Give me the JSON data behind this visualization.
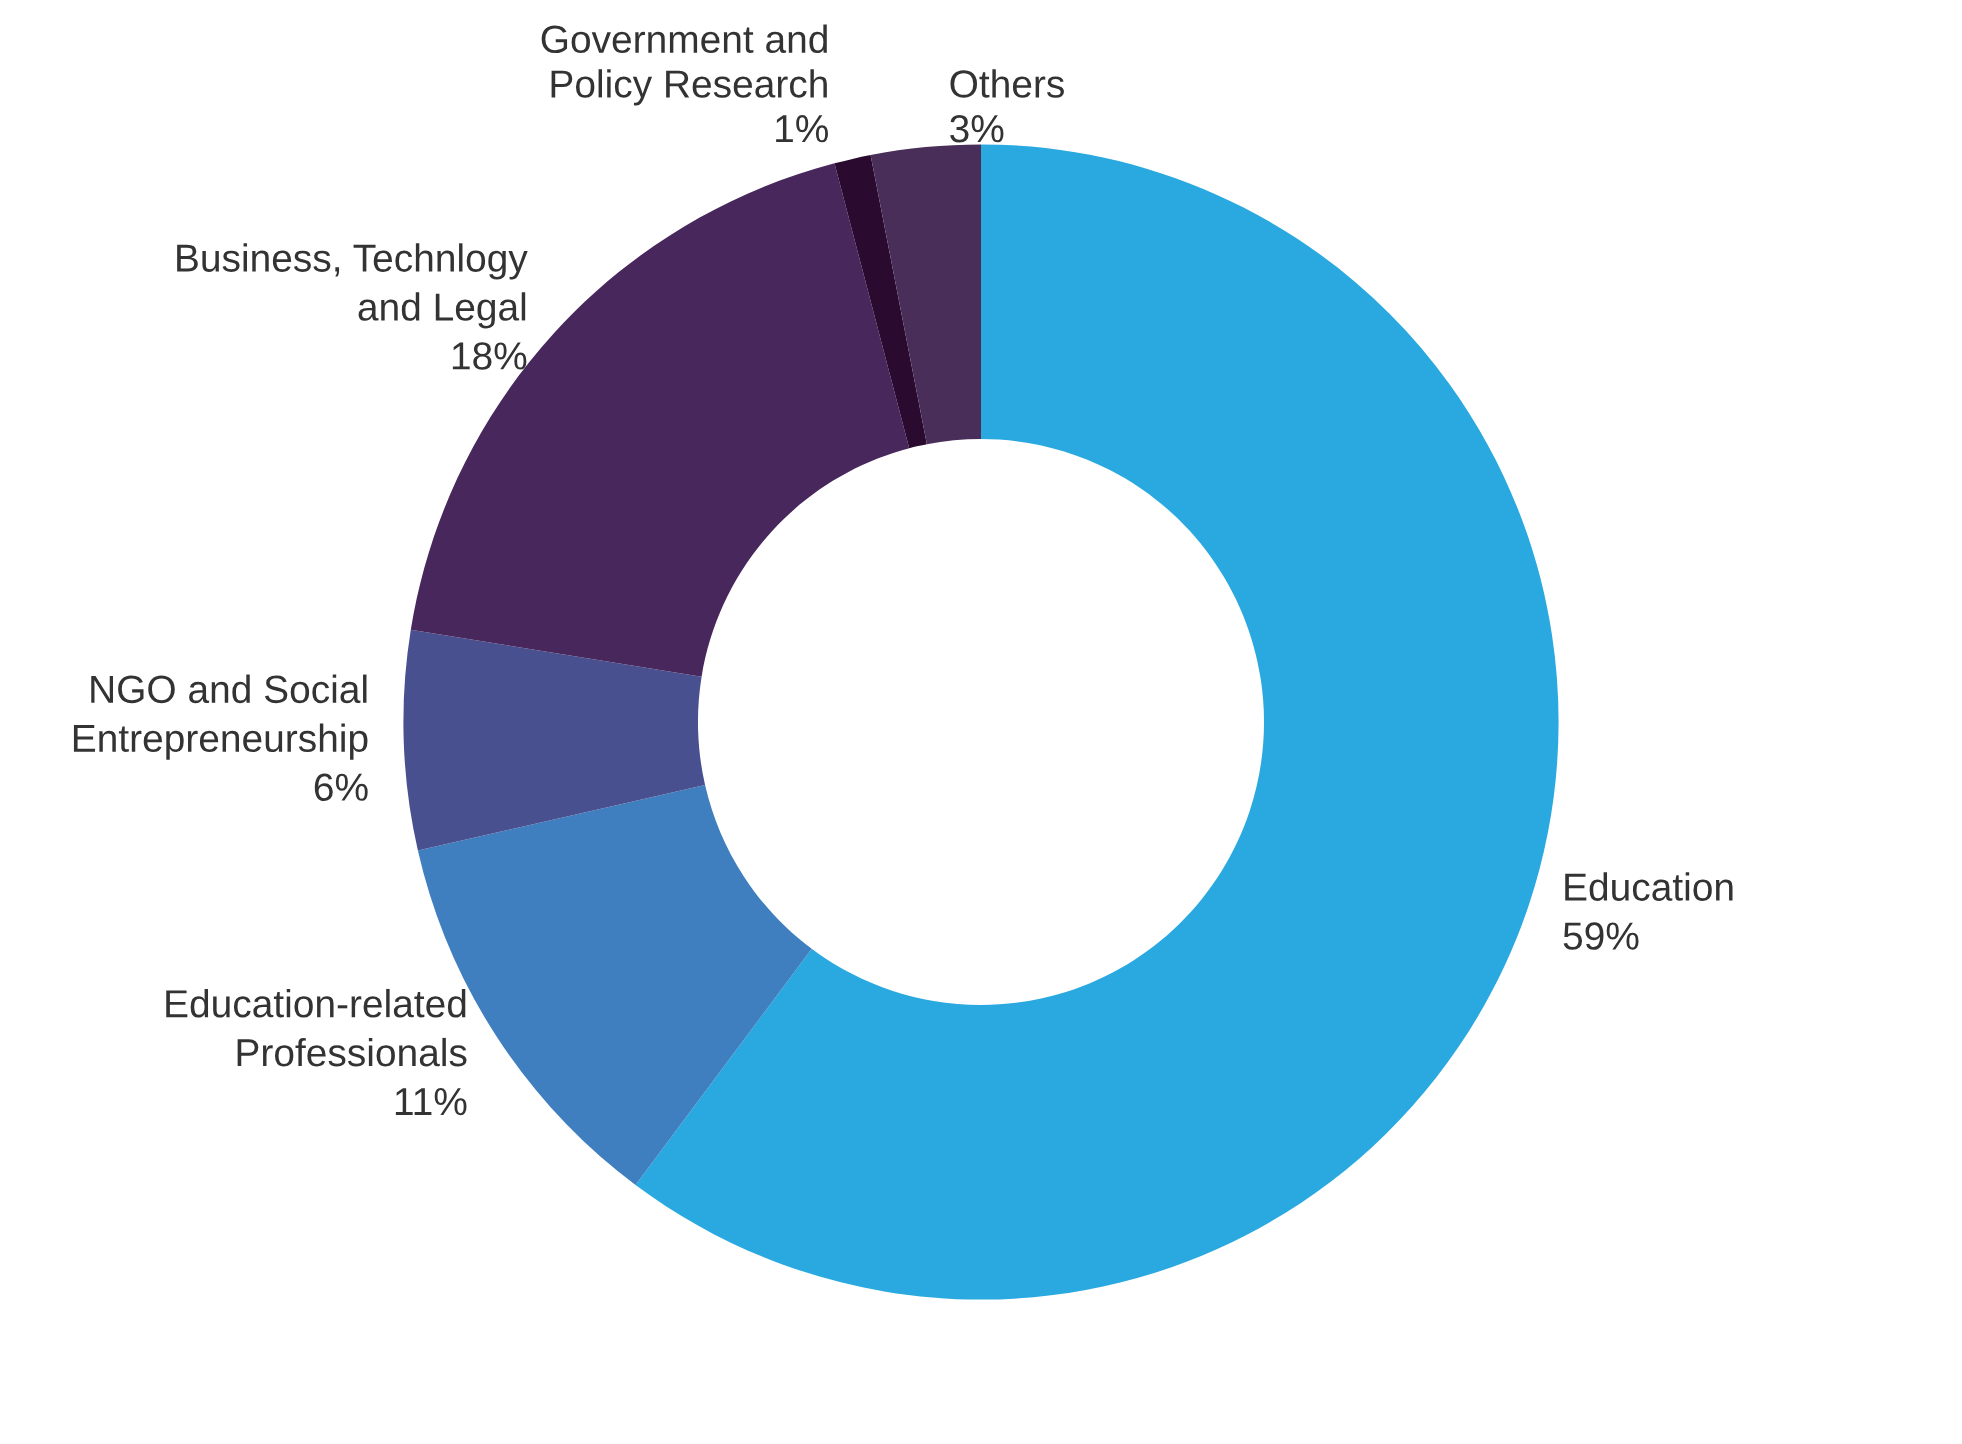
{
  "chart_data": {
    "type": "donut",
    "categories": [
      "Education",
      "Education-related\nProfessionals",
      "NGO and Social\nEntrepreneurship",
      "Business, Technlogy\nand Legal",
      "Government and\nPolicy Research",
      "Others"
    ],
    "values": [
      59,
      11,
      6,
      18,
      1,
      3
    ],
    "value_labels": [
      "59%",
      "11%",
      "6%",
      "18%",
      "1%",
      "3%"
    ],
    "colors": [
      "#29a9e0",
      "#3f7fc0",
      "#48508f",
      "#48275c",
      "#2a0a2e",
      "#4a2e5a"
    ],
    "legend": false
  }
}
